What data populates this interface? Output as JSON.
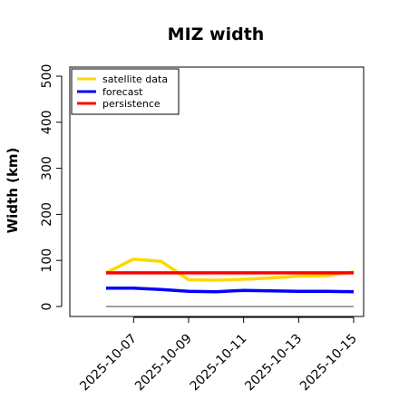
{
  "chart_data": {
    "type": "line",
    "title": "MIZ width",
    "xlabel": "",
    "ylabel": "Width (km)",
    "x": [
      "2025-10-06",
      "2025-10-07",
      "2025-10-08",
      "2025-10-09",
      "2025-10-10",
      "2025-10-11",
      "2025-10-12",
      "2025-10-13",
      "2025-10-14",
      "2025-10-15"
    ],
    "xticks": [
      "2025-10-07",
      "2025-10-09",
      "2025-10-11",
      "2025-10-13",
      "2025-10-15"
    ],
    "xtick_highlight": "2025-10-07",
    "xtick_highlight_color": "#228b22",
    "xlim": [
      "2025-10-06",
      "2025-10-15"
    ],
    "ylim": [
      0,
      500
    ],
    "yticks": [
      0,
      100,
      200,
      300,
      400,
      500
    ],
    "grid": false,
    "legend_position": "top-left",
    "reference_line": {
      "y": 0,
      "color": "#808080"
    },
    "series": [
      {
        "name": "satellite data",
        "color": "#ffd700",
        "values": [
          73,
          103,
          98,
          58,
          57,
          59,
          62,
          66,
          67,
          75
        ]
      },
      {
        "name": "forecast",
        "color": "#0000ff",
        "values": [
          40,
          40,
          37,
          33,
          32,
          35,
          34,
          33,
          33,
          32
        ]
      },
      {
        "name": "persistence",
        "color": "#ff0000",
        "values": [
          73,
          73,
          73,
          73,
          73,
          73,
          73,
          73,
          73,
          73
        ]
      }
    ]
  }
}
